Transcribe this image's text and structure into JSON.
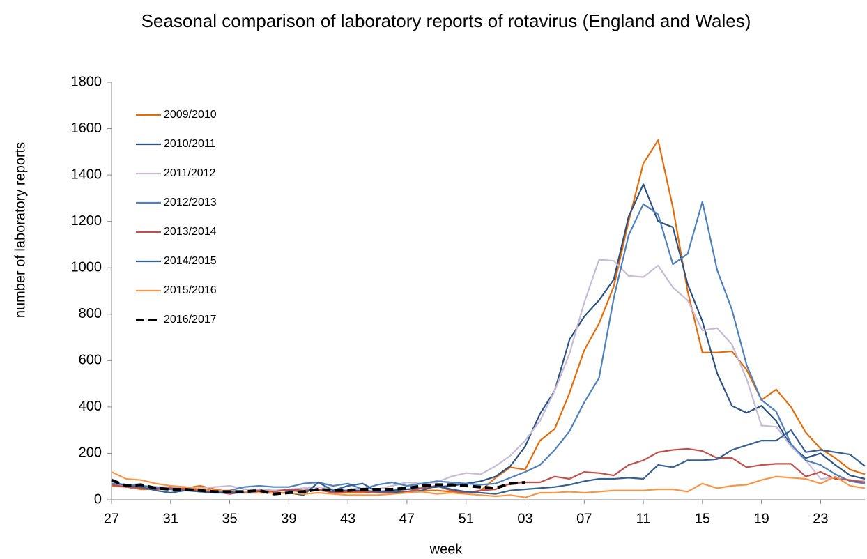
{
  "chart_data": {
    "type": "line",
    "title": "Seasonal comparison of laboratory reports of rotavirus (England and Wales)",
    "x_label": "week",
    "y_label": "number of laboratory reports",
    "categories": [
      "27",
      null,
      null,
      null,
      "31",
      null,
      null,
      null,
      "35",
      null,
      null,
      null,
      "39",
      null,
      null,
      null,
      "43",
      null,
      null,
      null,
      "47",
      null,
      null,
      null,
      "51",
      null,
      null,
      null,
      "03",
      null,
      null,
      null,
      "07",
      null,
      null,
      null,
      "11",
      null,
      null,
      null,
      "15",
      null,
      null,
      null,
      "19",
      null,
      null,
      null,
      "23",
      null,
      null,
      null
    ],
    "ylim": [
      0,
      1800
    ],
    "yticks": [
      0,
      200,
      400,
      600,
      800,
      1000,
      1200,
      1400,
      1600,
      1800
    ],
    "grid": false,
    "legend": "top-left",
    "series": [
      {
        "name": "2009/2010",
        "color": "#e46c0a",
        "values": [
          60,
          55,
          45,
          45,
          55,
          50,
          60,
          45,
          35,
          30,
          35,
          40,
          40,
          35,
          45,
          30,
          30,
          30,
          35,
          30,
          35,
          40,
          40,
          35,
          30,
          40,
          95,
          140,
          130,
          255,
          305,
          460,
          645,
          760,
          920,
          1200,
          1450,
          1550,
          1260,
          900,
          635,
          635,
          640,
          560,
          430,
          475,
          400,
          290,
          220,
          180,
          130,
          110
        ]
      },
      {
        "name": "2010/2011",
        "color": "#2c5282",
        "values": [
          65,
          60,
          55,
          50,
          45,
          45,
          40,
          40,
          35,
          35,
          35,
          40,
          40,
          40,
          40,
          35,
          40,
          40,
          35,
          40,
          45,
          50,
          55,
          60,
          70,
          80,
          100,
          145,
          230,
          370,
          470,
          690,
          790,
          860,
          950,
          1220,
          1360,
          1200,
          1175,
          930,
          770,
          545,
          405,
          375,
          405,
          340,
          230,
          180,
          200,
          150,
          105,
          90
        ]
      },
      {
        "name": "2011/2012",
        "color": "#c6bcd6",
        "values": [
          65,
          60,
          55,
          55,
          55,
          55,
          50,
          55,
          60,
          45,
          45,
          40,
          45,
          50,
          55,
          45,
          45,
          50,
          45,
          60,
          75,
          70,
          75,
          100,
          115,
          110,
          145,
          190,
          255,
          340,
          470,
          630,
          850,
          1035,
          1030,
          965,
          960,
          1010,
          915,
          860,
          730,
          740,
          670,
          520,
          320,
          315,
          230,
          170,
          90,
          95,
          85,
          80
        ]
      },
      {
        "name": "2012/2013",
        "color": "#4f81bd",
        "values": [
          70,
          65,
          60,
          55,
          45,
          40,
          40,
          35,
          40,
          55,
          60,
          55,
          55,
          70,
          75,
          60,
          70,
          45,
          65,
          75,
          60,
          70,
          80,
          75,
          70,
          65,
          70,
          95,
          120,
          150,
          215,
          295,
          420,
          525,
          870,
          1140,
          1275,
          1230,
          1015,
          1060,
          1285,
          990,
          820,
          580,
          430,
          380,
          240,
          170,
          150,
          110,
          80,
          70
        ]
      },
      {
        "name": "2013/2014",
        "color": "#c0504d",
        "values": [
          65,
          55,
          50,
          45,
          50,
          45,
          40,
          35,
          25,
          35,
          40,
          35,
          45,
          40,
          45,
          30,
          35,
          35,
          30,
          30,
          35,
          50,
          60,
          40,
          30,
          40,
          45,
          70,
          75,
          75,
          100,
          90,
          120,
          115,
          105,
          150,
          170,
          205,
          215,
          220,
          210,
          180,
          180,
          140,
          150,
          155,
          155,
          100,
          120,
          90,
          85,
          75
        ]
      },
      {
        "name": "2014/2015",
        "color": "#376092",
        "values": [
          80,
          60,
          55,
          40,
          30,
          40,
          35,
          30,
          30,
          30,
          30,
          30,
          30,
          20,
          75,
          40,
          60,
          70,
          35,
          35,
          30,
          40,
          60,
          45,
          35,
          30,
          25,
          40,
          45,
          50,
          55,
          65,
          80,
          90,
          90,
          95,
          90,
          150,
          140,
          170,
          170,
          175,
          215,
          235,
          255,
          255,
          300,
          205,
          215,
          205,
          195,
          145
        ]
      },
      {
        "name": "2015/2016",
        "color": "#f79646",
        "values": [
          120,
          90,
          85,
          70,
          60,
          55,
          45,
          40,
          40,
          35,
          30,
          30,
          30,
          25,
          30,
          25,
          20,
          20,
          20,
          25,
          30,
          35,
          25,
          30,
          25,
          20,
          15,
          20,
          10,
          30,
          30,
          35,
          30,
          35,
          40,
          40,
          40,
          45,
          45,
          35,
          70,
          50,
          60,
          65,
          85,
          100,
          95,
          90,
          70,
          100,
          60,
          50
        ]
      },
      {
        "name": "2016/2017",
        "color": "#000000",
        "dashed": true,
        "values": [
          85,
          60,
          65,
          50,
          45,
          45,
          40,
          35,
          35,
          35,
          40,
          25,
          30,
          35,
          45,
          40,
          40,
          45,
          45,
          45,
          50,
          60,
          65,
          65,
          60,
          55,
          50,
          70,
          75,
          null,
          null,
          null,
          null,
          null,
          null,
          null,
          null,
          null,
          null,
          null,
          null,
          null,
          null,
          null,
          null,
          null,
          null,
          null,
          null,
          null,
          null,
          null
        ]
      }
    ]
  }
}
